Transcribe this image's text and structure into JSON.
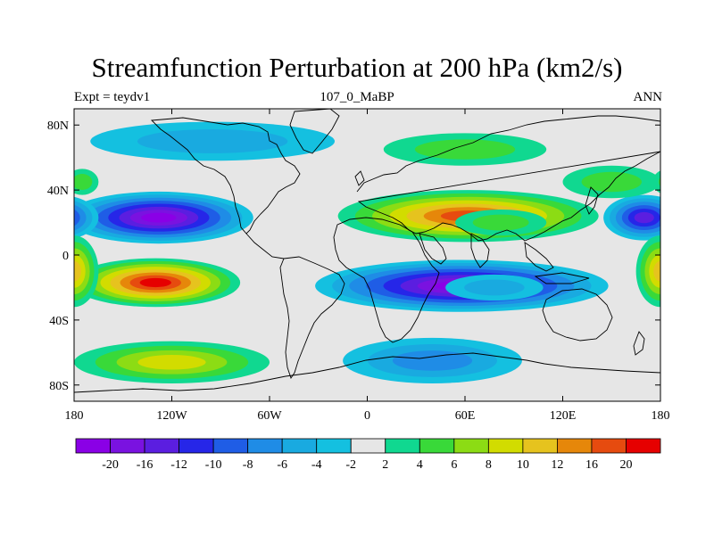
{
  "header": {
    "title": "Streamfunction Perturbation at 200 hPa (km2/s)",
    "left": "Expt = teydv1",
    "center": "107_0_MaBP",
    "right": "ANN"
  },
  "map": {
    "projection": "cylindrical-equidistant",
    "lon_range": [
      -180,
      180
    ],
    "lat_range": [
      -90,
      90
    ],
    "x_ticks": [
      {
        "lon": -180,
        "label": "180"
      },
      {
        "lon": -120,
        "label": "120W"
      },
      {
        "lon": -60,
        "label": "60W"
      },
      {
        "lon": 0,
        "label": "0"
      },
      {
        "lon": 60,
        "label": "60E"
      },
      {
        "lon": 120,
        "label": "120E"
      },
      {
        "lon": 180,
        "label": "180"
      }
    ],
    "y_ticks": [
      {
        "lat": 80,
        "label": "80N"
      },
      {
        "lat": 40,
        "label": "40N"
      },
      {
        "lat": 0,
        "label": "0"
      },
      {
        "lat": -40,
        "label": "40S"
      },
      {
        "lat": -80,
        "label": "80S"
      }
    ],
    "coastlines": "black outline of continents",
    "blobs": [
      {
        "lon": -128,
        "lat": 23,
        "rlon": 58,
        "rlat": 16,
        "value": -21
      },
      {
        "lon": 170,
        "lat": 23,
        "rlon": 25,
        "rlat": 14,
        "value": -15
      },
      {
        "lon": 62,
        "lat": 24,
        "rlon": 80,
        "rlat": 16,
        "value": 17
      },
      {
        "lon": 82,
        "lat": 20,
        "rlon": 28,
        "rlat": 8,
        "value": 5
      },
      {
        "lon": -130,
        "lat": -17,
        "rlon": 52,
        "rlat": 15,
        "value": 20
      },
      {
        "lon": 58,
        "lat": -19,
        "rlon": 90,
        "rlat": 16,
        "value": -20
      },
      {
        "lon": 78,
        "lat": -20,
        "rlon": 30,
        "rlat": 8,
        "value": -4
      },
      {
        "lon": 180,
        "lat": -10,
        "rlon": 15,
        "rlat": 22,
        "value": 10
      },
      {
        "lon": -120,
        "lat": -66,
        "rlon": 60,
        "rlat": 13,
        "value": 8
      },
      {
        "lon": 40,
        "lat": -65,
        "rlon": 55,
        "rlat": 14,
        "value": -7
      },
      {
        "lon": -95,
        "lat": 70,
        "rlon": 75,
        "rlat": 12,
        "value": -5
      },
      {
        "lon": 60,
        "lat": 65,
        "rlon": 50,
        "rlat": 10,
        "value": 5
      },
      {
        "lon": 150,
        "lat": 45,
        "rlon": 30,
        "rlat": 10,
        "value": 5
      },
      {
        "lon": -175,
        "lat": 45,
        "rlon": 10,
        "rlat": 8,
        "value": 4
      }
    ]
  },
  "colorbar": {
    "labels": [
      "-20",
      "-16",
      "-12",
      "-10",
      "-8",
      "-6",
      "-4",
      "-2",
      "2",
      "4",
      "6",
      "8",
      "10",
      "12",
      "16",
      "20"
    ],
    "colors": [
      "#8a00e6",
      "#7a12e0",
      "#5b1ee0",
      "#2626e8",
      "#1f5de6",
      "#1f8ce6",
      "#19aae0",
      "#14c0e0",
      "#e6e6e6",
      "#10d890",
      "#39d939",
      "#8cdc14",
      "#d2dc00",
      "#e6c31e",
      "#e6870a",
      "#e64b0f",
      "#e60000"
    ]
  }
}
